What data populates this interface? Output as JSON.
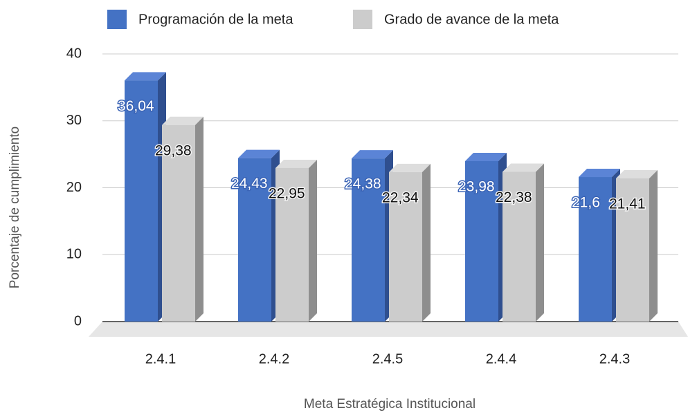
{
  "chart_data": {
    "type": "bar3d",
    "x_label": "Meta Estratégica Institucional",
    "y_label": "Porcentaje de cumplimiento",
    "categories": [
      "2.4.1",
      "2.4.2",
      "2.4.5",
      "2.4.4",
      "2.4.3"
    ],
    "series": [
      {
        "name": "Programación de la meta",
        "color": "#4472c4",
        "side_color": "#2f4f8f",
        "top_color": "#5b84d6",
        "values": [
          36.04,
          24.43,
          24.38,
          23.98,
          21.6
        ],
        "value_labels": [
          "36,04",
          "24,43",
          "24,38",
          "23,98",
          "21,6"
        ]
      },
      {
        "name": "Grado de avance de la meta",
        "color": "#cccccc",
        "side_color": "#8e8e8e",
        "top_color": "#dddddd",
        "values": [
          29.38,
          22.95,
          22.34,
          22.38,
          21.41
        ],
        "value_labels": [
          "29,38",
          "22,95",
          "22,34",
          "22,38",
          "21,41"
        ]
      }
    ],
    "ylim": [
      0,
      40
    ],
    "yticks": [
      0,
      10,
      20,
      30,
      40
    ],
    "grid": true,
    "legend": "top"
  }
}
